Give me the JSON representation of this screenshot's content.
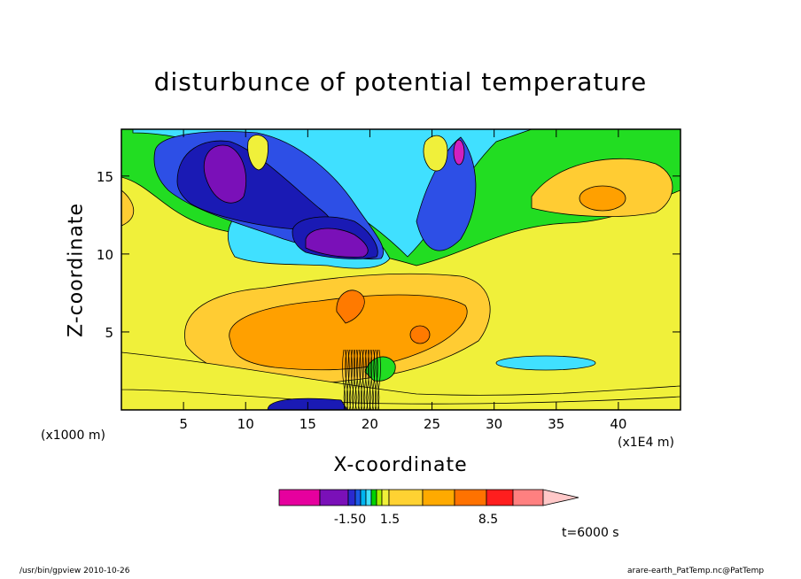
{
  "chart_data": {
    "type": "heatmap",
    "title": "disturbunce of potential temperature",
    "xlabel": "X-coordinate",
    "ylabel": "Z-coordinate",
    "x_unit_note": "(x1000 m)",
    "x_scale_note": "(x1E4 m)",
    "x_ticks": [
      5,
      10,
      15,
      20,
      25,
      30,
      35,
      40
    ],
    "y_ticks": [
      5,
      10,
      15
    ],
    "xlim": [
      0,
      45
    ],
    "ylim": [
      0,
      18
    ],
    "time_label": "t=6000 s",
    "colorbar": {
      "colors": [
        "#e6009e",
        "#7a10b8",
        "#2a2ad0",
        "#1a5ae6",
        "#00b4f0",
        "#40e0ff",
        "#00d200",
        "#a8f000",
        "#f0f03a",
        "#ffd232",
        "#ffaa00",
        "#ff7200",
        "#ff1e1e",
        "#ff8080"
      ],
      "extend_color": "#ffc8c8",
      "tick_labels": [
        "-1.50",
        "1.5",
        "8.5"
      ]
    },
    "field_levels": [
      {
        "name": "green",
        "color": "#22dd22"
      },
      {
        "name": "yellow",
        "color": "#f0f03a"
      },
      {
        "name": "light-orange",
        "color": "#ffcc33"
      },
      {
        "name": "orange",
        "color": "#ffa000"
      },
      {
        "name": "dark-orange",
        "color": "#ff7a00"
      },
      {
        "name": "cyan",
        "color": "#40e0ff"
      },
      {
        "name": "blue",
        "color": "#2d4fe6"
      },
      {
        "name": "navy",
        "color": "#1a1ab4"
      },
      {
        "name": "purple",
        "color": "#7a10b8"
      },
      {
        "name": "magenta",
        "color": "#d020c0"
      }
    ]
  },
  "footer": {
    "left": "/usr/bin/gpview  2010-10-26",
    "right": "arare-earth_PatTemp.nc@PatTemp"
  }
}
